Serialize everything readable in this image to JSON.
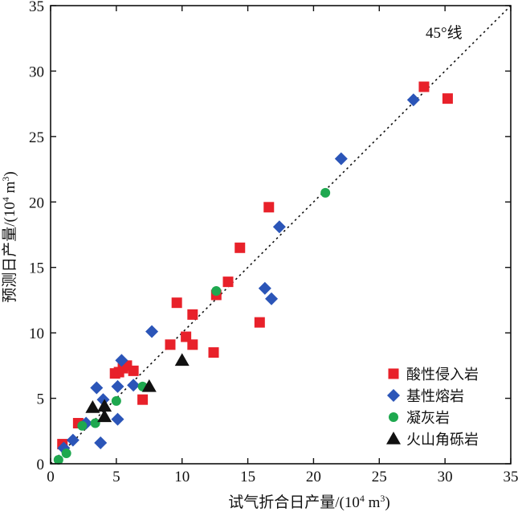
{
  "chart_data": {
    "type": "scatter",
    "title": "",
    "xlabel": "试气折合日产量/(10",
    "xlabel_sup": "4",
    "xlabel_unit": " m",
    "xlabel_sup2": "3",
    "xlabel_end": ")",
    "ylabel": "预测日产量/(10",
    "ylabel_sup": "4",
    "ylabel_unit": " m",
    "ylabel_sup2": "3",
    "ylabel_end": ")",
    "xlim": [
      0,
      35
    ],
    "ylim": [
      0,
      35
    ],
    "xticks": [
      0,
      5,
      10,
      15,
      20,
      25,
      30,
      35
    ],
    "yticks": [
      0,
      5,
      10,
      15,
      20,
      25,
      30,
      35
    ],
    "grid": false,
    "legend_position": "bottom-right",
    "reference_line": {
      "label": "45°线",
      "from": [
        0,
        0
      ],
      "to": [
        35,
        35
      ],
      "style": "dotted"
    },
    "series": [
      {
        "name": "酸性侵入岩",
        "marker": "square",
        "color": "#e8212a",
        "points": [
          [
            0.9,
            1.5
          ],
          [
            2.1,
            3.1
          ],
          [
            4.9,
            6.9
          ],
          [
            5.2,
            7.0
          ],
          [
            5.5,
            7.3
          ],
          [
            5.8,
            7.5
          ],
          [
            6.3,
            7.1
          ],
          [
            7.0,
            4.9
          ],
          [
            9.1,
            9.1
          ],
          [
            9.6,
            12.3
          ],
          [
            10.3,
            9.7
          ],
          [
            10.8,
            11.4
          ],
          [
            10.8,
            9.1
          ],
          [
            12.4,
            8.5
          ],
          [
            12.6,
            12.9
          ],
          [
            13.5,
            13.9
          ],
          [
            14.4,
            16.5
          ],
          [
            15.9,
            10.8
          ],
          [
            16.6,
            19.6
          ],
          [
            28.4,
            28.8
          ],
          [
            30.2,
            27.9
          ]
        ]
      },
      {
        "name": "基性熔岩",
        "marker": "diamond",
        "color": "#2b55b8",
        "points": [
          [
            1.0,
            1.2
          ],
          [
            1.7,
            1.8
          ],
          [
            2.7,
            3.1
          ],
          [
            3.5,
            5.8
          ],
          [
            3.8,
            1.6
          ],
          [
            4.0,
            4.9
          ],
          [
            5.1,
            5.9
          ],
          [
            5.1,
            3.4
          ],
          [
            5.4,
            7.9
          ],
          [
            6.3,
            6.0
          ],
          [
            7.7,
            10.1
          ],
          [
            16.3,
            13.4
          ],
          [
            16.8,
            12.6
          ],
          [
            17.4,
            18.1
          ],
          [
            22.1,
            23.3
          ],
          [
            27.6,
            27.8
          ]
        ]
      },
      {
        "name": "凝灰岩",
        "marker": "circle",
        "color": "#1ea84f",
        "points": [
          [
            0.6,
            0.3
          ],
          [
            1.2,
            0.8
          ],
          [
            2.4,
            2.9
          ],
          [
            3.4,
            3.1
          ],
          [
            5.0,
            4.8
          ],
          [
            7.0,
            5.9
          ],
          [
            12.6,
            13.2
          ],
          [
            20.9,
            20.7
          ]
        ]
      },
      {
        "name": "火山角砾岩",
        "marker": "triangle",
        "color": "#111111",
        "points": [
          [
            3.2,
            4.3
          ],
          [
            4.1,
            4.4
          ],
          [
            4.1,
            3.6
          ],
          [
            7.5,
            5.9
          ],
          [
            10.0,
            7.9
          ]
        ]
      }
    ]
  }
}
